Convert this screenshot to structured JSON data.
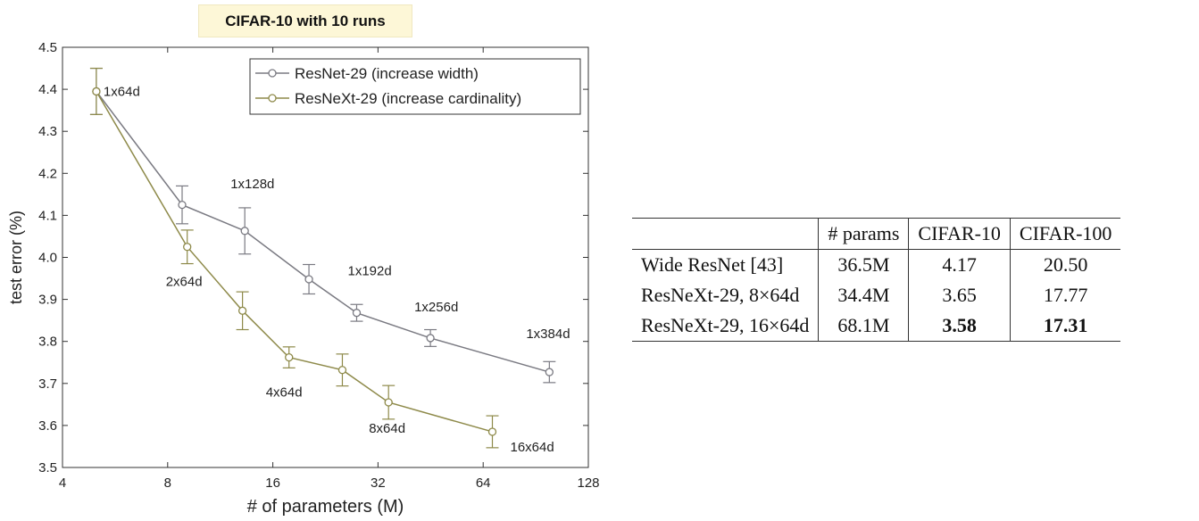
{
  "banner": "CIFAR-10 with 10 runs",
  "chart_data": {
    "type": "line",
    "title": "",
    "xlabel": "# of parameters (M)",
    "ylabel": "test error (%)",
    "xscale": "log2",
    "xlim": [
      4,
      128
    ],
    "ylim": [
      3.5,
      4.5
    ],
    "xticks": [
      4,
      8,
      16,
      32,
      64,
      128
    ],
    "yticks": [
      3.5,
      3.6,
      3.7,
      3.8,
      3.9,
      4.0,
      4.1,
      4.2,
      4.3,
      4.4,
      4.5
    ],
    "ytick_labels": [
      "3.5",
      "3.6",
      "3.7",
      "3.8",
      "3.9",
      "4.0",
      "4.1",
      "4.2",
      "4.3",
      "4.4",
      "4.5"
    ],
    "grid": false,
    "legend": "top-right",
    "series": [
      {
        "name": "ResNet-29 (increase width)",
        "color": "#7a7a82",
        "points": [
          {
            "x": 5.0,
            "y": 4.395,
            "err": 0.055,
            "label": "1x64d"
          },
          {
            "x": 8.8,
            "y": 4.125,
            "err": 0.045,
            "label": ""
          },
          {
            "x": 13.3,
            "y": 4.063,
            "err": 0.055,
            "label": "1x128d"
          },
          {
            "x": 20.3,
            "y": 3.948,
            "err": 0.035,
            "label": ""
          },
          {
            "x": 27.8,
            "y": 3.868,
            "err": 0.02,
            "label": "1x192d"
          },
          {
            "x": 45.2,
            "y": 3.808,
            "err": 0.02,
            "label": "1x256d"
          },
          {
            "x": 99.0,
            "y": 3.727,
            "err": 0.025,
            "label": "1x384d"
          }
        ]
      },
      {
        "name": "ResNeXt-29 (increase cardinality)",
        "color": "#8e8a4a",
        "points": [
          {
            "x": 5.0,
            "y": 4.395,
            "err": 0.055,
            "label": ""
          },
          {
            "x": 9.1,
            "y": 4.025,
            "err": 0.04,
            "label": "2x64d"
          },
          {
            "x": 13.1,
            "y": 3.873,
            "err": 0.045,
            "label": ""
          },
          {
            "x": 17.8,
            "y": 3.762,
            "err": 0.025,
            "label": "4x64d"
          },
          {
            "x": 25.3,
            "y": 3.732,
            "err": 0.038,
            "label": ""
          },
          {
            "x": 34.3,
            "y": 3.655,
            "err": 0.04,
            "label": "8x64d"
          },
          {
            "x": 68.0,
            "y": 3.585,
            "err": 0.038,
            "label": "16x64d"
          }
        ]
      }
    ]
  },
  "table": {
    "headers": [
      "",
      "# params",
      "CIFAR-10",
      "CIFAR-100"
    ],
    "rows": [
      {
        "model": "Wide ResNet [43]",
        "params": "36.5M",
        "cifar10": "4.17",
        "cifar100": "20.50"
      },
      {
        "model": "ResNeXt-29, 8×64d",
        "params": "34.4M",
        "cifar10": "3.65",
        "cifar100": "17.77"
      },
      {
        "model": "ResNeXt-29, 16×64d",
        "params": "68.1M",
        "cifar10": "3.58",
        "cifar100": "17.31"
      }
    ]
  }
}
